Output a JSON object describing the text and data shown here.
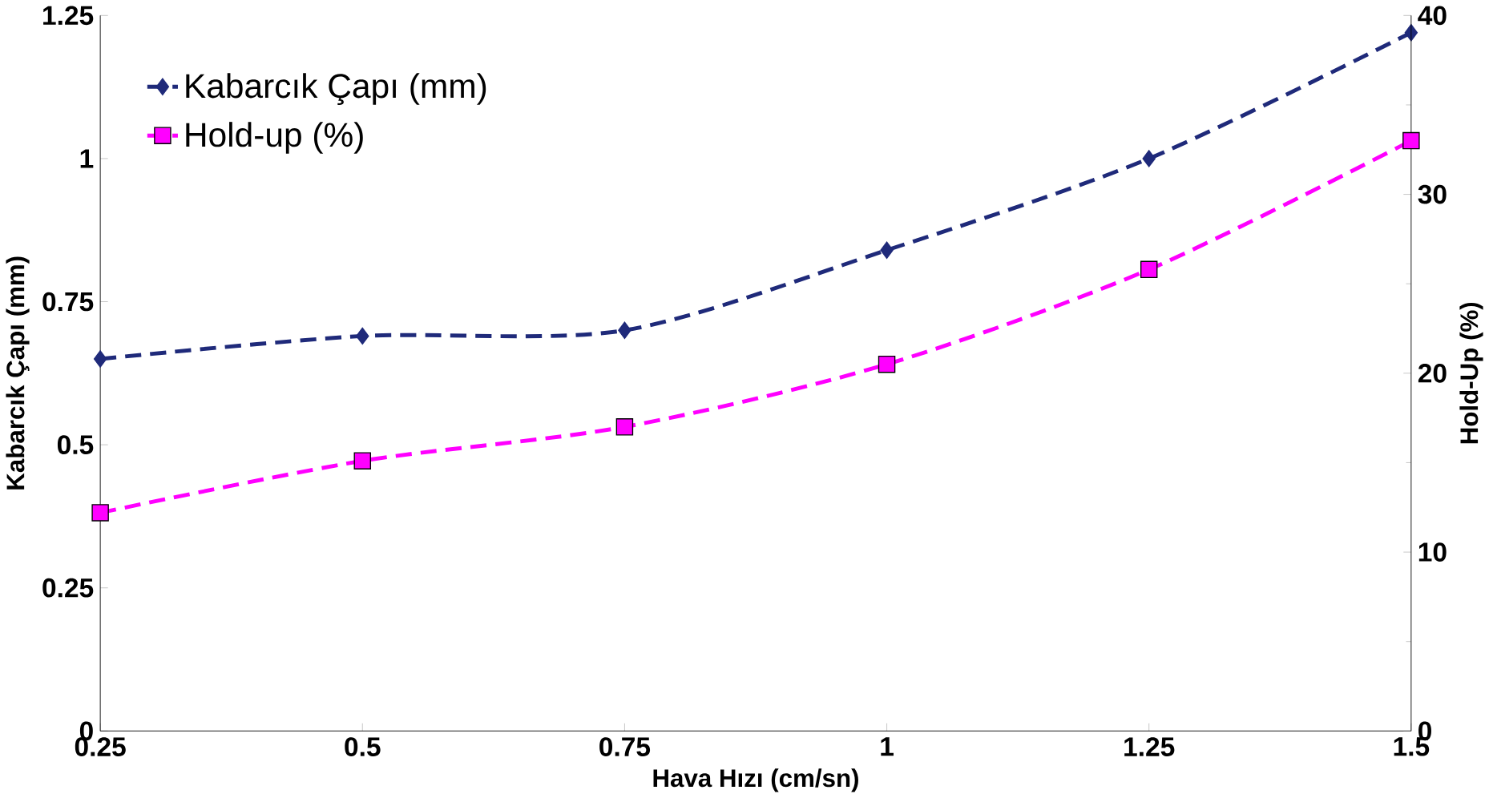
{
  "chart_data": {
    "type": "line",
    "xlabel": "Hava Hızı (cm/sn)",
    "ylabel": "Kabarcık Çapı (mm)",
    "y2label": "Hold-Up (%)",
    "x": [
      0.25,
      0.5,
      0.75,
      1,
      1.25,
      1.5
    ],
    "series": [
      {
        "name": "Kabarcık Çapı (mm)",
        "color": "#1f2a7a",
        "marker": "diamond",
        "values": [
          0.65,
          0.69,
          0.7,
          0.84,
          1.0,
          1.22
        ]
      },
      {
        "name": "Hold-up (%)",
        "color": "#ff00ff",
        "marker": "square",
        "axis": "y2",
        "values": [
          12.2,
          15.1,
          17.0,
          20.5,
          25.8,
          33.0
        ]
      }
    ],
    "xlim": [
      0.25,
      1.5
    ],
    "xticks": [
      0.25,
      0.5,
      0.75,
      1,
      1.25,
      1.5
    ],
    "ylim": [
      0,
      1.25
    ],
    "yticks": [
      0,
      0.25,
      0.5,
      0.75,
      1,
      1.25
    ],
    "y2lim": [
      0,
      40
    ],
    "y2ticks": [
      0,
      10,
      20,
      30,
      40
    ],
    "line_style": "dashed",
    "legend": "top left",
    "grid": false
  }
}
